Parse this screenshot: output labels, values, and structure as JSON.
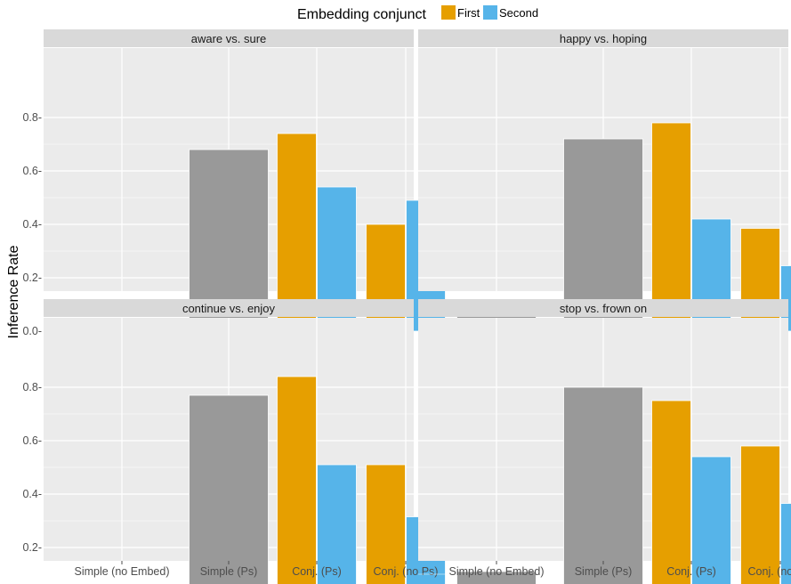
{
  "chart_data": {
    "type": "bar",
    "ylabel": "Inference Rate",
    "legend": {
      "title": "Embedding conjunct",
      "position": "top",
      "entries": [
        {
          "key": "first",
          "label": "First",
          "color": "#E69F00"
        },
        {
          "key": "second",
          "label": "Second",
          "color": "#56B4E9"
        }
      ]
    },
    "single_color": "#999999",
    "categories": [
      "Simple (no Embed)",
      "Simple (Ps)",
      "Conj. (Ps)",
      "Conj. (no Ps)"
    ],
    "ylim": [
      0,
      0.8
    ],
    "yticks": [
      0.0,
      0.2,
      0.4,
      0.6,
      0.8
    ],
    "ytick_labels": [
      "0.0-",
      "0.2-",
      "0.4-",
      "0.6-",
      "0.8-"
    ],
    "grid": true,
    "panels": [
      {
        "title": "aware vs. sure",
        "bars": [
          {
            "category": "Simple (no Embed)",
            "value": 0.03
          },
          {
            "category": "Simple (Ps)",
            "value": 0.68
          },
          {
            "category": "Conj. (Ps)",
            "series": "first",
            "value": 0.74
          },
          {
            "category": "Conj. (Ps)",
            "series": "second",
            "value": 0.54
          },
          {
            "category": "Conj. (no Ps)",
            "series": "first",
            "value": 0.4
          },
          {
            "category": "Conj. (no Ps)",
            "series": "second",
            "value": 0.49
          }
        ]
      },
      {
        "title": "happy vs. hoping",
        "bars": [
          {
            "category": "Simple (no Embed)",
            "value": 0.06
          },
          {
            "category": "Simple (Ps)",
            "value": 0.72
          },
          {
            "category": "Conj. (Ps)",
            "series": "first",
            "value": 0.78
          },
          {
            "category": "Conj. (Ps)",
            "series": "second",
            "value": 0.42
          },
          {
            "category": "Conj. (no Ps)",
            "series": "first",
            "value": 0.385
          },
          {
            "category": "Conj. (no Ps)",
            "series": "second",
            "value": 0.245
          }
        ]
      },
      {
        "title": "continue vs. enjoy",
        "bars": [
          {
            "category": "Simple (no Embed)",
            "value": 0.06
          },
          {
            "category": "Simple (Ps)",
            "value": 0.77
          },
          {
            "category": "Conj. (Ps)",
            "series": "first",
            "value": 0.84
          },
          {
            "category": "Conj. (Ps)",
            "series": "second",
            "value": 0.51
          },
          {
            "category": "Conj. (no Ps)",
            "series": "first",
            "value": 0.51
          },
          {
            "category": "Conj. (no Ps)",
            "series": "second",
            "value": 0.315
          }
        ]
      },
      {
        "title": "stop vs. frown on",
        "bars": [
          {
            "category": "Simple (no Embed)",
            "value": 0.11
          },
          {
            "category": "Simple (Ps)",
            "value": 0.8
          },
          {
            "category": "Conj. (Ps)",
            "series": "first",
            "value": 0.75
          },
          {
            "category": "Conj. (Ps)",
            "series": "second",
            "value": 0.54
          },
          {
            "category": "Conj. (no Ps)",
            "series": "first",
            "value": 0.58
          },
          {
            "category": "Conj. (no Ps)",
            "series": "second",
            "value": 0.365
          }
        ]
      }
    ]
  }
}
